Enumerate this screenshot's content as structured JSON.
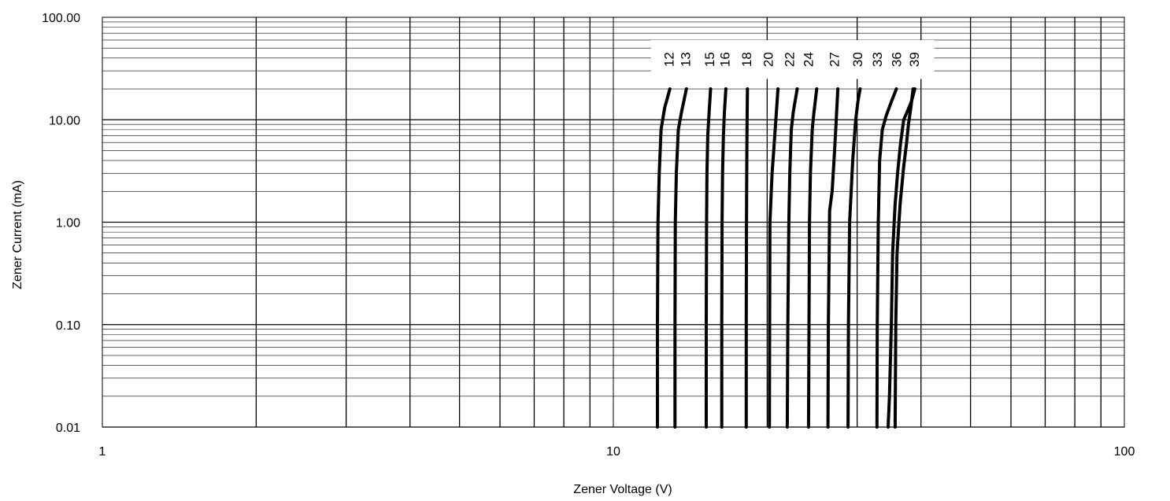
{
  "chart_data": {
    "type": "line",
    "xscale": "log",
    "yscale": "log",
    "xlabel": "Zener Voltage (V)",
    "ylabel": "Zener Current (mA)",
    "xlim": [
      1,
      100
    ],
    "ylim": [
      0.01,
      100
    ],
    "x_ticks": [
      1,
      10,
      100
    ],
    "x_tick_labels": [
      "1",
      "10",
      "100"
    ],
    "y_ticks": [
      0.01,
      0.1,
      1,
      10,
      100
    ],
    "y_tick_labels": [
      "0.01",
      "0.10",
      "1.00",
      "10.00",
      "100.00"
    ],
    "grid": true,
    "colors": {
      "curve": "#000000",
      "grid": "#000000",
      "background": "#ffffff"
    },
    "series": [
      {
        "name": "12",
        "label_x": 12.9,
        "points": [
          [
            12.2,
            0.01
          ],
          [
            12.2,
            0.1
          ],
          [
            12.23,
            1
          ],
          [
            12.3,
            3
          ],
          [
            12.4,
            8
          ],
          [
            12.6,
            13
          ],
          [
            12.9,
            20
          ]
        ]
      },
      {
        "name": "13",
        "label_x": 13.9,
        "points": [
          [
            13.2,
            0.01
          ],
          [
            13.2,
            0.1
          ],
          [
            13.22,
            1
          ],
          [
            13.28,
            3
          ],
          [
            13.4,
            8
          ],
          [
            13.6,
            12
          ],
          [
            13.9,
            20
          ]
        ]
      },
      {
        "name": "15",
        "label_x": 15.5,
        "points": [
          [
            15.2,
            0.01
          ],
          [
            15.2,
            0.1
          ],
          [
            15.22,
            1
          ],
          [
            15.25,
            3
          ],
          [
            15.3,
            7
          ],
          [
            15.4,
            12
          ],
          [
            15.5,
            20
          ]
        ]
      },
      {
        "name": "16",
        "label_x": 16.6,
        "points": [
          [
            16.3,
            0.01
          ],
          [
            16.3,
            0.1
          ],
          [
            16.32,
            1
          ],
          [
            16.36,
            3
          ],
          [
            16.42,
            7
          ],
          [
            16.5,
            12
          ],
          [
            16.6,
            20
          ]
        ]
      },
      {
        "name": "18",
        "label_x": 18.3,
        "points": [
          [
            18.2,
            0.01
          ],
          [
            18.2,
            0.1
          ],
          [
            18.22,
            1
          ],
          [
            18.24,
            3
          ],
          [
            18.26,
            7
          ],
          [
            18.3,
            20
          ]
        ]
      },
      {
        "name": "20",
        "label_x": 20.2,
        "points": [
          [
            20.2,
            0.01
          ],
          [
            20.22,
            0.1
          ],
          [
            20.25,
            1
          ],
          [
            20.45,
            3
          ],
          [
            20.6,
            5
          ],
          [
            20.8,
            10
          ],
          [
            21.0,
            20
          ]
        ]
      },
      {
        "name": "22",
        "label_x": 22.2,
        "points": [
          [
            21.9,
            0.01
          ],
          [
            21.95,
            0.1
          ],
          [
            22.05,
            1
          ],
          [
            22.15,
            3
          ],
          [
            22.3,
            8
          ],
          [
            22.5,
            12
          ],
          [
            22.9,
            20
          ]
        ]
      },
      {
        "name": "24",
        "label_x": 24.2,
        "points": [
          [
            24.1,
            0.01
          ],
          [
            24.15,
            0.1
          ],
          [
            24.2,
            1
          ],
          [
            24.3,
            3
          ],
          [
            24.5,
            8
          ],
          [
            24.7,
            12
          ],
          [
            25.0,
            20
          ]
        ]
      },
      {
        "name": "27",
        "label_x": 27.2,
        "points": [
          [
            26.3,
            0.01
          ],
          [
            26.35,
            0.1
          ],
          [
            26.5,
            1.3
          ],
          [
            26.8,
            2
          ],
          [
            27.1,
            5
          ],
          [
            27.3,
            10
          ],
          [
            27.5,
            20
          ]
        ]
      },
      {
        "name": "30",
        "label_x": 30.2,
        "points": [
          [
            28.8,
            0.01
          ],
          [
            28.85,
            0.1
          ],
          [
            29.0,
            1
          ],
          [
            29.4,
            4
          ],
          [
            29.8,
            10
          ],
          [
            30.1,
            15
          ],
          [
            30.4,
            20
          ]
        ]
      },
      {
        "name": "33",
        "label_x": 33.0,
        "points": [
          [
            32.8,
            0.01
          ],
          [
            32.85,
            0.1
          ],
          [
            33.0,
            1
          ],
          [
            33.2,
            4
          ],
          [
            33.6,
            8
          ],
          [
            34.2,
            11
          ],
          [
            35.0,
            15
          ],
          [
            35.8,
            20
          ]
        ]
      },
      {
        "name": "36",
        "label_x": 36.0,
        "points": [
          [
            34.5,
            0.01
          ],
          [
            34.7,
            0.02
          ],
          [
            35.0,
            0.1
          ],
          [
            35.2,
            0.5
          ],
          [
            35.6,
            1.5
          ],
          [
            36.0,
            3
          ],
          [
            36.5,
            6
          ],
          [
            37.0,
            10
          ],
          [
            37.6,
            12
          ],
          [
            38.3,
            15
          ],
          [
            38.9,
            20
          ]
        ]
      },
      {
        "name": "39",
        "label_x": 39.0,
        "points": [
          [
            35.6,
            0.01
          ],
          [
            35.7,
            0.1
          ],
          [
            35.9,
            0.5
          ],
          [
            36.4,
            1.5
          ],
          [
            37.0,
            3.5
          ],
          [
            37.5,
            6
          ],
          [
            37.8,
            9
          ],
          [
            38.2,
            13
          ],
          [
            38.6,
            20
          ]
        ]
      }
    ]
  }
}
